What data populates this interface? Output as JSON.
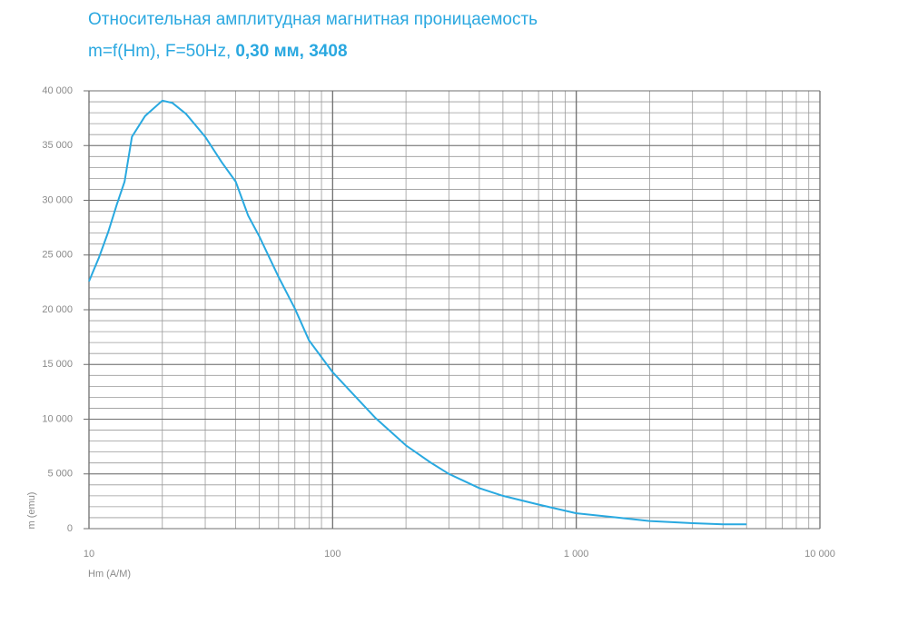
{
  "chart_data": {
    "type": "line",
    "title": "Относительная амплитудная магнитная проницаемость",
    "subtitle": "m=f(Hm), F=50Hz,",
    "subtitle_bold": "0,30 мм, 3408",
    "x_label": "Hm (A/M)",
    "y_label": "m (emu)",
    "x": [
      10,
      11,
      12,
      13,
      14,
      15,
      17,
      20,
      22,
      25,
      30,
      35,
      40,
      45,
      50,
      60,
      70,
      80,
      100,
      120,
      150,
      200,
      250,
      300,
      400,
      500,
      700,
      1000,
      1500,
      2000,
      3000,
      4000,
      5000
    ],
    "series": [
      {
        "name": "m",
        "color": "#29a9e0",
        "values": [
          22600,
          24800,
          27100,
          29600,
          31700,
          35800,
          37700,
          39100,
          38900,
          37900,
          35800,
          33500,
          31700,
          28600,
          26700,
          23000,
          20100,
          17200,
          14300,
          12400,
          10100,
          7600,
          6100,
          5000,
          3700,
          3000,
          2200,
          1400,
          1000,
          700,
          500,
          400,
          400
        ]
      }
    ],
    "xlim": [
      10,
      10000
    ],
    "x_log": true,
    "xticks": [
      10,
      100,
      {
        "value": 1000,
        "label": "1 000"
      },
      {
        "value": 10000,
        "label": "10 000"
      }
    ],
    "ylim": [
      0,
      40000
    ],
    "yticks": [
      0,
      {
        "value": 5000,
        "label": "5 000"
      },
      {
        "value": 10000,
        "label": "10 000"
      },
      {
        "value": 15000,
        "label": "15 000"
      },
      {
        "value": 20000,
        "label": "20 000"
      },
      {
        "value": 25000,
        "label": "25 000"
      },
      {
        "value": 30000,
        "label": "30 000"
      },
      {
        "value": 35000,
        "label": "35 000"
      },
      {
        "value": 40000,
        "label": "40 000"
      }
    ],
    "y_minor_step": 1000,
    "grid": true
  }
}
